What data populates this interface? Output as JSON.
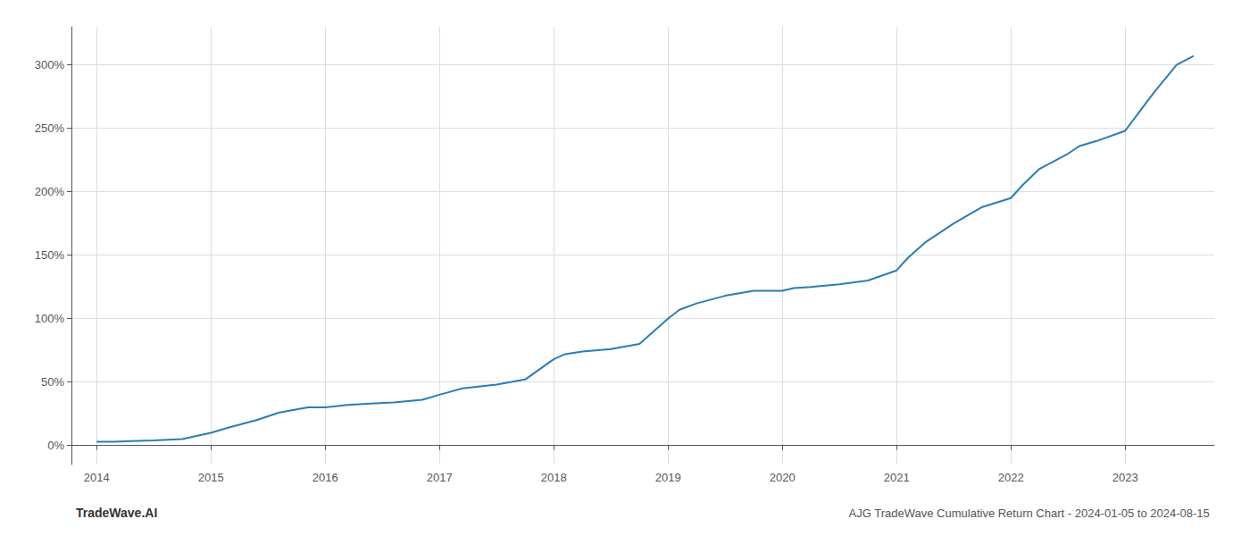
{
  "chart_data": {
    "type": "line",
    "title": "AJG TradeWave Cumulative Return Chart - 2024-01-05 to 2024-08-15",
    "annotations": [
      "TradeWave.AI"
    ],
    "color": "#2a7db5",
    "x": [
      2014.0,
      2014.15,
      2014.3,
      2014.5,
      2014.75,
      2015.0,
      2015.15,
      2015.4,
      2015.6,
      2015.85,
      2016.0,
      2016.2,
      2016.4,
      2016.6,
      2016.85,
      2017.0,
      2017.2,
      2017.5,
      2017.75,
      2018.0,
      2018.1,
      2018.25,
      2018.5,
      2018.75,
      2019.0,
      2019.1,
      2019.25,
      2019.5,
      2019.75,
      2020.0,
      2020.1,
      2020.25,
      2020.5,
      2020.75,
      2021.0,
      2021.1,
      2021.25,
      2021.5,
      2021.75,
      2022.0,
      2022.1,
      2022.25,
      2022.5,
      2022.6,
      2022.75,
      2023.0,
      2023.1,
      2023.25,
      2023.45,
      2023.6
    ],
    "values": [
      3,
      3,
      3.5,
      4,
      5,
      10,
      14,
      20,
      26,
      30,
      30,
      32,
      33,
      34,
      36,
      40,
      45,
      48,
      52,
      68,
      72,
      74,
      76,
      80,
      100,
      107,
      112,
      118,
      122,
      122,
      124,
      125,
      127,
      130,
      138,
      148,
      160,
      175,
      188,
      195,
      205,
      218,
      230,
      236,
      240,
      248,
      260,
      278,
      300,
      307
    ],
    "xlim": [
      2013.78,
      2023.78
    ],
    "xticks": [
      2014,
      2015,
      2016,
      2017,
      2018,
      2019,
      2020,
      2021,
      2022,
      2023
    ],
    "ylim": [
      -15,
      330
    ],
    "yticks": [
      {
        "value": 0,
        "label": "0%"
      },
      {
        "value": 50,
        "label": "50%"
      },
      {
        "value": 100,
        "label": "100%"
      },
      {
        "value": 150,
        "label": "150%"
      },
      {
        "value": 200,
        "label": "200%"
      },
      {
        "value": 250,
        "label": "250%"
      },
      {
        "value": 300,
        "label": "300%"
      }
    ],
    "grid": true
  }
}
